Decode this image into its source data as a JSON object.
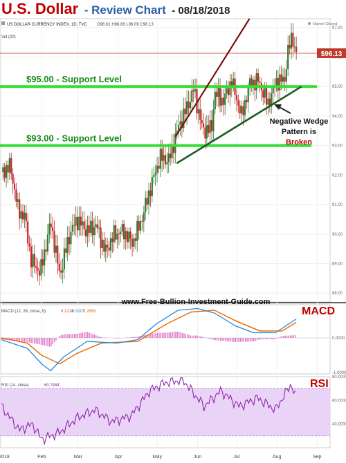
{
  "header": {
    "title": "U.S. Dollar",
    "subtitle": "- Review Chart",
    "date": "- 08/18/2018"
  },
  "legend": {
    "symbol": "US DOLLAR CURRENCY INDEX, 1D, TVC",
    "ohlc": "O96.61 H96.66 L96.09 C96.13",
    "volume_label": "Vol (20)",
    "market_status": "Market Closed",
    "macd_label": "MACD (12, 26, close, 9)",
    "macd_values": [
      "0.1218",
      "0.9107",
      "0.2889"
    ],
    "rsi_label": "RSI (14, close)",
    "rsi_value": "60.7484"
  },
  "annotations": {
    "support_95": "$95.00 - Support Level",
    "support_93": "$93.00 - Support Level",
    "wedge_line1": "Negative Wedge",
    "wedge_line2": "Pattern is",
    "wedge_line3": "Broken",
    "website": "www.Free-Bullion-Investment-Guide.com",
    "macd_title": "MACD",
    "rsi_title": "RSI",
    "price_tag": "$96.13"
  },
  "colors": {
    "up": "#2e7d32",
    "down": "#c62828",
    "support": "#33dd33",
    "macd_line": "#1e88e5",
    "signal_line": "#ef6c00",
    "histogram": "#e078c8",
    "rsi_line": "#8e24aa",
    "rsi_band": "#e9d4f7",
    "wedge_upper": "#7a0f0f",
    "wedge_lower": "#1b5e20",
    "price_tag": "#c0392b",
    "title_red": "#c00000",
    "title_blue": "#2a5fa8",
    "label_green": "#1a8a1a"
  },
  "chart_data": [
    {
      "type": "candlestick",
      "title": "US DOLLAR CURRENCY INDEX, 1D, TVC",
      "x_tick_labels": [
        "2018",
        "Feb",
        "Mar",
        "Apr",
        "May",
        "Jun",
        "Jul",
        "Aug",
        "Sep"
      ],
      "y_tick_labels": [
        "97.00",
        "96.00",
        "95.00",
        "94.00",
        "93.00",
        "92.00",
        "91.00",
        "90.00",
        "89.00",
        "88.00"
      ],
      "ylim": [
        87.7,
        97.3
      ],
      "last_price": 96.13,
      "support_levels": [
        95.0,
        93.0
      ],
      "wedge_upper": [
        {
          "x": "2018-05-16",
          "y": 93.3
        },
        {
          "x": "2018-07-12",
          "y": 97.3
        }
      ],
      "wedge_lower": [
        {
          "x": "2018-05-17",
          "y": 92.4
        },
        {
          "x": "2018-08-21",
          "y": 95.0
        }
      ],
      "close_path": [
        {
          "x": "2018-01-02",
          "y": 92.1
        },
        {
          "x": "2018-01-09",
          "y": 92.3
        },
        {
          "x": "2018-01-15",
          "y": 90.8
        },
        {
          "x": "2018-01-20",
          "y": 90.6
        },
        {
          "x": "2018-01-25",
          "y": 89.1
        },
        {
          "x": "2018-02-01",
          "y": 88.7
        },
        {
          "x": "2018-02-09",
          "y": 90.4
        },
        {
          "x": "2018-02-16",
          "y": 88.6
        },
        {
          "x": "2018-02-23",
          "y": 89.9
        },
        {
          "x": "2018-03-01",
          "y": 90.5
        },
        {
          "x": "2018-03-09",
          "y": 90.1
        },
        {
          "x": "2018-03-16",
          "y": 90.3
        },
        {
          "x": "2018-03-23",
          "y": 89.4
        },
        {
          "x": "2018-03-30",
          "y": 90.0
        },
        {
          "x": "2018-04-06",
          "y": 90.1
        },
        {
          "x": "2018-04-13",
          "y": 89.7
        },
        {
          "x": "2018-04-20",
          "y": 90.5
        },
        {
          "x": "2018-04-27",
          "y": 91.6
        },
        {
          "x": "2018-05-04",
          "y": 92.6
        },
        {
          "x": "2018-05-11",
          "y": 92.5
        },
        {
          "x": "2018-05-18",
          "y": 93.6
        },
        {
          "x": "2018-05-25",
          "y": 94.3
        },
        {
          "x": "2018-05-30",
          "y": 94.9
        },
        {
          "x": "2018-06-06",
          "y": 93.5
        },
        {
          "x": "2018-06-13",
          "y": 93.6
        },
        {
          "x": "2018-06-15",
          "y": 94.8
        },
        {
          "x": "2018-06-22",
          "y": 94.5
        },
        {
          "x": "2018-06-28",
          "y": 95.2
        },
        {
          "x": "2018-07-06",
          "y": 94.0
        },
        {
          "x": "2018-07-12",
          "y": 95.1
        },
        {
          "x": "2018-07-19",
          "y": 95.2
        },
        {
          "x": "2018-07-26",
          "y": 94.4
        },
        {
          "x": "2018-08-02",
          "y": 95.2
        },
        {
          "x": "2018-08-08",
          "y": 95.2
        },
        {
          "x": "2018-08-10",
          "y": 96.1
        },
        {
          "x": "2018-08-14",
          "y": 96.7
        },
        {
          "x": "2018-08-17",
          "y": 96.1
        }
      ]
    },
    {
      "type": "line",
      "title": "MACD (12, 26, close, 9)",
      "y_tick_labels": [
        "0.0000",
        "-1.0000"
      ],
      "series": [
        {
          "name": "MACD",
          "points": [
            {
              "x": "2018-01-02",
              "y": -0.05
            },
            {
              "x": "2018-01-22",
              "y": -0.3
            },
            {
              "x": "2018-02-02",
              "y": -0.75
            },
            {
              "x": "2018-02-09",
              "y": -0.95
            },
            {
              "x": "2018-02-19",
              "y": -0.55
            },
            {
              "x": "2018-03-09",
              "y": -0.1
            },
            {
              "x": "2018-04-01",
              "y": -0.15
            },
            {
              "x": "2018-04-17",
              "y": -0.05
            },
            {
              "x": "2018-05-01",
              "y": 0.4
            },
            {
              "x": "2018-05-18",
              "y": 0.8
            },
            {
              "x": "2018-06-02",
              "y": 0.85
            },
            {
              "x": "2018-06-15",
              "y": 0.72
            },
            {
              "x": "2018-07-01",
              "y": 0.35
            },
            {
              "x": "2018-07-15",
              "y": 0.15
            },
            {
              "x": "2018-08-01",
              "y": 0.15
            },
            {
              "x": "2018-08-17",
              "y": 0.55
            }
          ]
        },
        {
          "name": "Signal",
          "points": [
            {
              "x": "2018-01-02",
              "y": 0.0
            },
            {
              "x": "2018-01-22",
              "y": -0.15
            },
            {
              "x": "2018-02-02",
              "y": -0.5
            },
            {
              "x": "2018-02-16",
              "y": -0.75
            },
            {
              "x": "2018-03-01",
              "y": -0.45
            },
            {
              "x": "2018-03-20",
              "y": -0.15
            },
            {
              "x": "2018-04-17",
              "y": -0.1
            },
            {
              "x": "2018-05-09",
              "y": 0.4
            },
            {
              "x": "2018-05-28",
              "y": 0.75
            },
            {
              "x": "2018-06-15",
              "y": 0.8
            },
            {
              "x": "2018-07-01",
              "y": 0.5
            },
            {
              "x": "2018-07-20",
              "y": 0.2
            },
            {
              "x": "2018-08-06",
              "y": 0.2
            },
            {
              "x": "2018-08-17",
              "y": 0.45
            }
          ]
        }
      ]
    },
    {
      "type": "line",
      "title": "RSI (14, close)",
      "y_tick_labels": [
        "80.0000",
        "60.0000",
        "40.0000"
      ],
      "ylim": [
        20,
        80
      ],
      "band": [
        30,
        70
      ],
      "series": [
        {
          "name": "RSI",
          "points": [
            {
              "x": "2018-01-02",
              "y": 55
            },
            {
              "x": "2018-01-16",
              "y": 35
            },
            {
              "x": "2018-01-26",
              "y": 40
            },
            {
              "x": "2018-02-02",
              "y": 27
            },
            {
              "x": "2018-02-16",
              "y": 33
            },
            {
              "x": "2018-03-01",
              "y": 45
            },
            {
              "x": "2018-03-15",
              "y": 52
            },
            {
              "x": "2018-03-28",
              "y": 42
            },
            {
              "x": "2018-04-12",
              "y": 47
            },
            {
              "x": "2018-04-26",
              "y": 68
            },
            {
              "x": "2018-05-08",
              "y": 75
            },
            {
              "x": "2018-05-22",
              "y": 77
            },
            {
              "x": "2018-06-07",
              "y": 55
            },
            {
              "x": "2018-06-20",
              "y": 68
            },
            {
              "x": "2018-07-04",
              "y": 55
            },
            {
              "x": "2018-07-18",
              "y": 62
            },
            {
              "x": "2018-08-01",
              "y": 52
            },
            {
              "x": "2018-08-13",
              "y": 74
            },
            {
              "x": "2018-08-17",
              "y": 61
            }
          ]
        }
      ]
    }
  ]
}
